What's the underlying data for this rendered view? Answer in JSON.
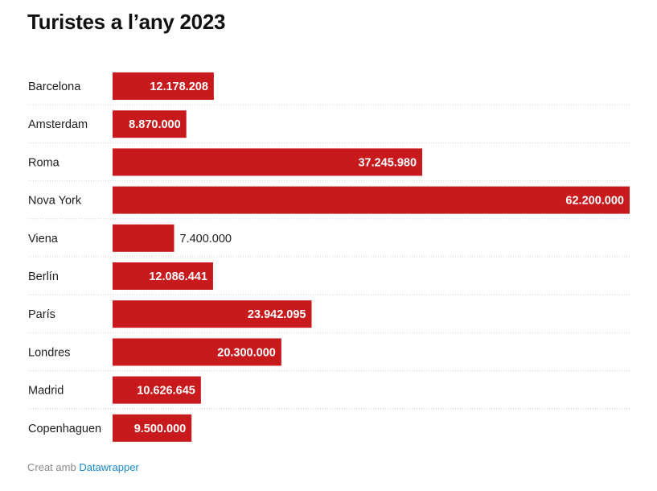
{
  "chart_data": {
    "type": "bar",
    "orientation": "horizontal",
    "title": "Turistes a l’any 2023",
    "categories": [
      "Barcelona",
      "Amsterdam",
      "Roma",
      "Nova York",
      "Viena",
      "Berlín",
      "París",
      "Londres",
      "Madrid",
      "Copenhaguen"
    ],
    "values": [
      12178208,
      8870000,
      37245980,
      62200000,
      7400000,
      12086441,
      23942095,
      20300000,
      10626645,
      9500000
    ],
    "value_labels": [
      "12.178.208",
      "8.870.000",
      "37.245.980",
      "62.200.000",
      "7.400.000",
      "12.086.441",
      "23.942.095",
      "20.300.000",
      "10.626.645",
      "9.500.000"
    ],
    "xlim": [
      0,
      62200000
    ],
    "grid": false,
    "bar_color": "#c8191c"
  },
  "footer": {
    "prefix": "Creat amb",
    "link_text": "Datawrapper"
  }
}
